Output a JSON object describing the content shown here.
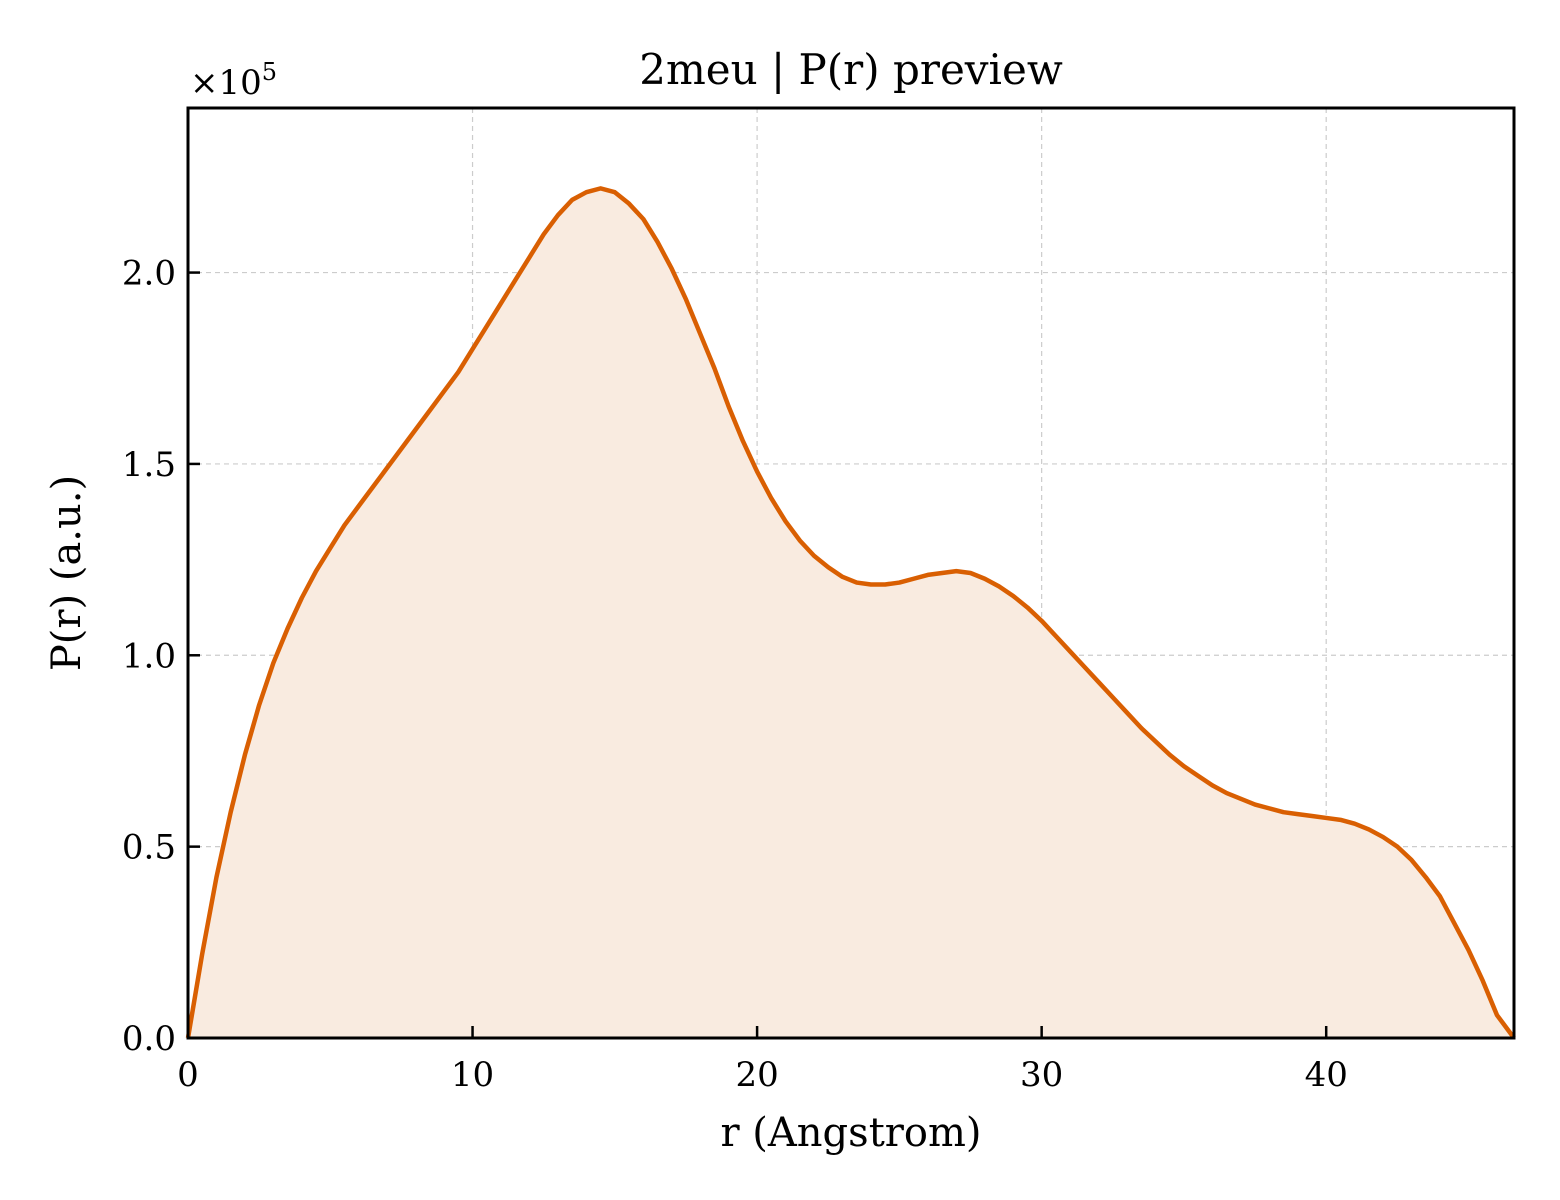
{
  "chart_data": {
    "type": "area",
    "title": "2meu | P(r) preview",
    "xlabel": "r (Angstrom)",
    "ylabel": "P(r) (a.u.)",
    "y_multiplier": {
      "base": "×10",
      "exponent": "5"
    },
    "xlim": [
      0,
      46.6
    ],
    "ylim": [
      0,
      2.43
    ],
    "xticks": [
      0,
      10,
      20,
      30,
      40
    ],
    "xtick_labels": [
      "0",
      "10",
      "20",
      "30",
      "40"
    ],
    "yticks": [
      0,
      0.5,
      1.0,
      1.5,
      2.0
    ],
    "ytick_labels": [
      "0.0",
      "0.5",
      "1.0",
      "1.5",
      "2.0"
    ],
    "grid": true,
    "line_color": "#d95f02",
    "fill_color": "#f9ebe0",
    "series": [
      {
        "x": [
          0,
          0.5,
          1,
          1.5,
          2,
          2.5,
          3,
          3.5,
          4,
          4.5,
          5,
          5.5,
          6,
          6.5,
          7,
          7.5,
          8,
          8.5,
          9,
          9.5,
          10,
          10.5,
          11,
          11.5,
          12,
          12.5,
          13,
          13.5,
          14,
          14.5,
          15,
          15.5,
          16,
          16.5,
          17,
          17.5,
          18,
          18.5,
          19,
          19.5,
          20,
          20.5,
          21,
          21.5,
          22,
          22.5,
          23,
          23.5,
          24,
          24.5,
          25,
          25.5,
          26,
          26.5,
          27,
          27.5,
          28,
          28.5,
          29,
          29.5,
          30,
          30.5,
          31,
          31.5,
          32,
          32.5,
          33,
          33.5,
          34,
          34.5,
          35,
          35.5,
          36,
          36.5,
          37,
          37.5,
          38,
          38.5,
          39,
          39.5,
          40,
          40.5,
          41,
          41.5,
          42,
          42.5,
          43,
          43.5,
          44,
          44.5,
          45,
          45.5,
          46,
          46.6
        ],
        "values": [
          0,
          0.22,
          0.42,
          0.59,
          0.74,
          0.87,
          0.98,
          1.07,
          1.15,
          1.22,
          1.28,
          1.34,
          1.39,
          1.44,
          1.49,
          1.54,
          1.59,
          1.64,
          1.69,
          1.74,
          1.8,
          1.86,
          1.92,
          1.98,
          2.04,
          2.1,
          2.15,
          2.19,
          2.21,
          2.22,
          2.21,
          2.18,
          2.14,
          2.08,
          2.01,
          1.93,
          1.84,
          1.75,
          1.65,
          1.56,
          1.48,
          1.41,
          1.35,
          1.3,
          1.26,
          1.23,
          1.205,
          1.19,
          1.185,
          1.185,
          1.19,
          1.2,
          1.21,
          1.215,
          1.22,
          1.215,
          1.2,
          1.18,
          1.155,
          1.125,
          1.09,
          1.05,
          1.01,
          0.97,
          0.93,
          0.89,
          0.85,
          0.81,
          0.775,
          0.74,
          0.71,
          0.685,
          0.66,
          0.64,
          0.625,
          0.61,
          0.6,
          0.59,
          0.585,
          0.58,
          0.575,
          0.57,
          0.56,
          0.545,
          0.525,
          0.5,
          0.465,
          0.42,
          0.37,
          0.3,
          0.23,
          0.15,
          0.06,
          0
        ]
      }
    ]
  }
}
